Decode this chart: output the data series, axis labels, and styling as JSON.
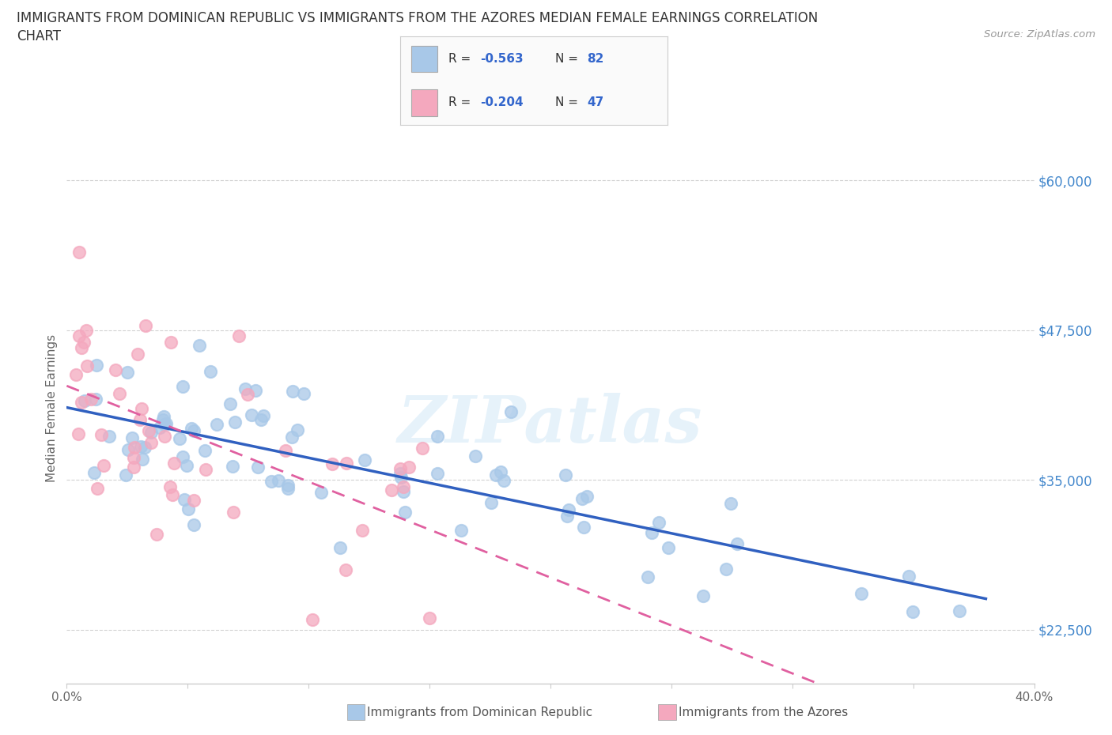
{
  "title_line1": "IMMIGRANTS FROM DOMINICAN REPUBLIC VS IMMIGRANTS FROM THE AZORES MEDIAN FEMALE EARNINGS CORRELATION",
  "title_line2": "CHART",
  "source_text": "Source: ZipAtlas.com",
  "ylabel": "Median Female Earnings",
  "xlim": [
    0.0,
    0.4
  ],
  "ylim": [
    18000,
    64000
  ],
  "yticks": [
    22500,
    35000,
    47500,
    60000
  ],
  "ytick_labels": [
    "$22,500",
    "$35,000",
    "$47,500",
    "$60,000"
  ],
  "xticks": [
    0.0,
    0.05,
    0.1,
    0.15,
    0.2,
    0.25,
    0.3,
    0.35,
    0.4
  ],
  "xtick_labels": [
    "0.0%",
    "",
    "",
    "",
    "",
    "",
    "",
    "",
    "40.0%"
  ],
  "legend_r1": "R = -0.563",
  "legend_n1": "N = 82",
  "legend_r2": "R = -0.204",
  "legend_n2": "N = 47",
  "color_blue": "#a8c8e8",
  "color_pink": "#f4a8be",
  "color_blue_line": "#3060c0",
  "color_pink_line": "#e060a0",
  "color_dashed": "#cccccc",
  "background_color": "#ffffff",
  "watermark_text": "ZIPatlas",
  "legend_box_color": "#f5f5f5",
  "legend_r_color": "#333333",
  "legend_val_color": "#3366cc",
  "bottom_legend_color": "#555555"
}
